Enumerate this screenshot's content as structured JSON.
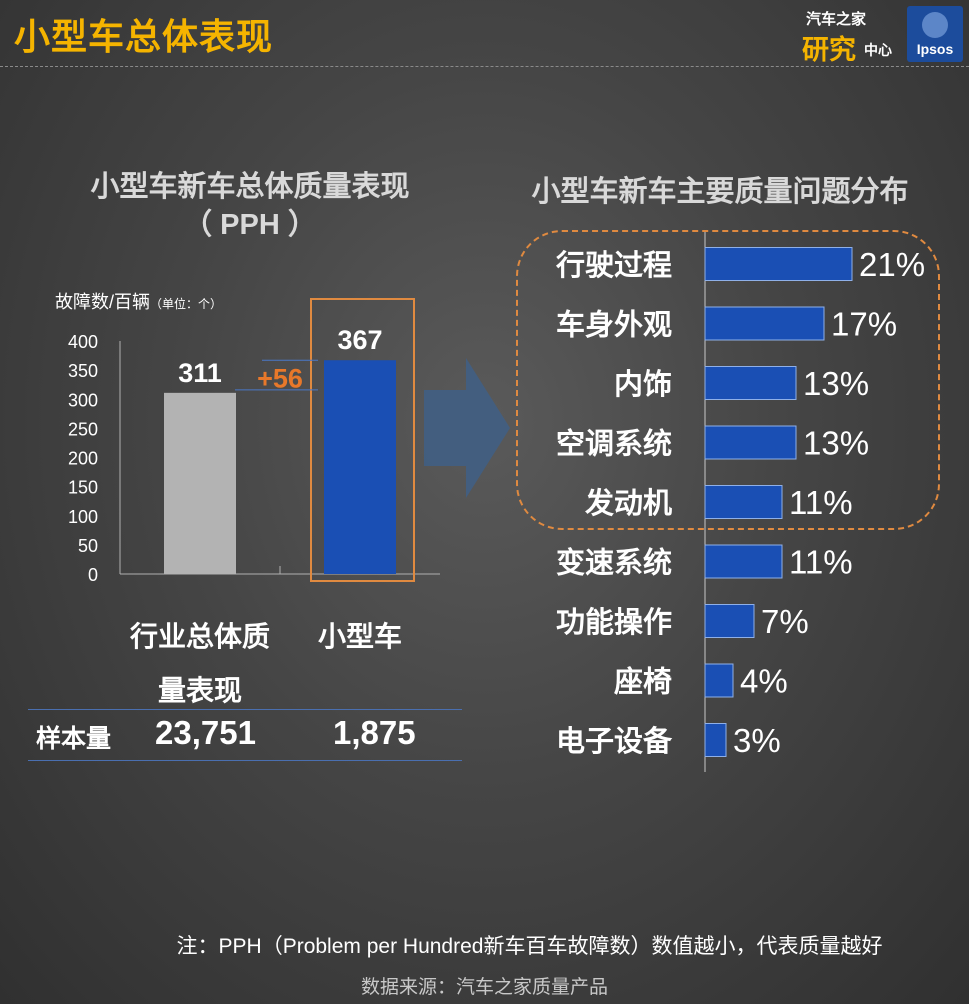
{
  "header": {
    "title": "小型车总体表现"
  },
  "logo_autohome": {
    "line1": "汽车之家",
    "line2": "研究",
    "line3": "中心"
  },
  "logo_ipsos": {
    "text": "Ipsos"
  },
  "left_panel": {
    "title_line1": "小型车新车总体质量表现",
    "title_line2": "（ PPH ）",
    "ylabel_main": "故障数/百辆",
    "ylabel_unit": "（单位：个）"
  },
  "right_panel": {
    "title": "小型车新车主要质量问题分布"
  },
  "sample": {
    "label": "样本量",
    "industry": "23,751",
    "small_car": "1,875"
  },
  "footnote": "注：PPH（Problem  per Hundred新车百车故障数）数值越小，代表质量越好",
  "source": "数据来源：汽车之家质量产品",
  "colors": {
    "accent": "#f5b400",
    "industry_bar": "#b3b3b3",
    "small_bar": "#1a4fb4",
    "highlight": "#e08a40",
    "diff_text": "#e8782a"
  },
  "chart_data": [
    {
      "type": "bar",
      "categories": [
        "行业总体质量表现",
        "小型车"
      ],
      "category_lines": [
        [
          "行业总体质",
          "量表现"
        ],
        [
          "小型车"
        ]
      ],
      "values": [
        311,
        367
      ],
      "data_labels": [
        "311",
        "367"
      ],
      "difference_label": "+56",
      "ylim": [
        0,
        400
      ],
      "yticks": [
        0,
        50,
        100,
        150,
        200,
        250,
        300,
        350,
        400
      ]
    },
    {
      "type": "bar",
      "orientation": "horizontal",
      "categories": [
        "行驶过程",
        "车身外观",
        "内饰",
        "空调系统",
        "发动机",
        "变速系统",
        "功能操作",
        "座椅",
        "电子设备"
      ],
      "values": [
        21,
        17,
        13,
        13,
        11,
        11,
        7,
        4,
        3
      ],
      "data_labels": [
        "21%",
        "17%",
        "13%",
        "13%",
        "11%",
        "11%",
        "7%",
        "4%",
        "3%"
      ],
      "highlighted_top": 5
    }
  ]
}
